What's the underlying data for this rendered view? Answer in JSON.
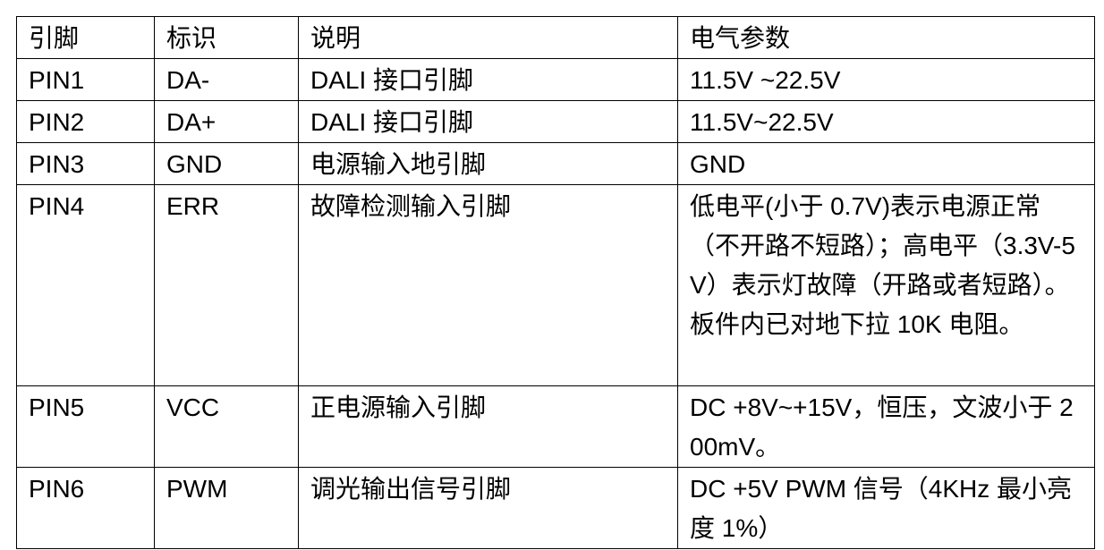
{
  "table": {
    "headers": [
      "引脚",
      "标识",
      "说明",
      "电气参数"
    ],
    "rows": [
      [
        "PIN1",
        "DA-",
        "DALI 接口引脚",
        "11.5V ~22.5V"
      ],
      [
        "PIN2",
        "DA+",
        "DALI 接口引脚",
        "11.5V~22.5V"
      ],
      [
        "PIN3",
        "GND",
        "电源输入地引脚",
        "GND"
      ],
      [
        "PIN4",
        "ERR",
        "故障检测输入引脚",
        "低电平(小于 0.7V)表示电源正常（不开路不短路）；高电平（3.3V-5V）表示灯故障（开路或者短路）。板件内已对地下拉 10K 电阻。"
      ],
      [
        "PIN5",
        "VCC",
        "正电源输入引脚",
        "DC +8V~+15V，恒压，文波小于 200mV。"
      ],
      [
        "PIN6",
        "PWM",
        "调光输出信号引脚",
        "DC +5V PWM 信号（4KHz 最小亮度 1%）"
      ]
    ]
  }
}
